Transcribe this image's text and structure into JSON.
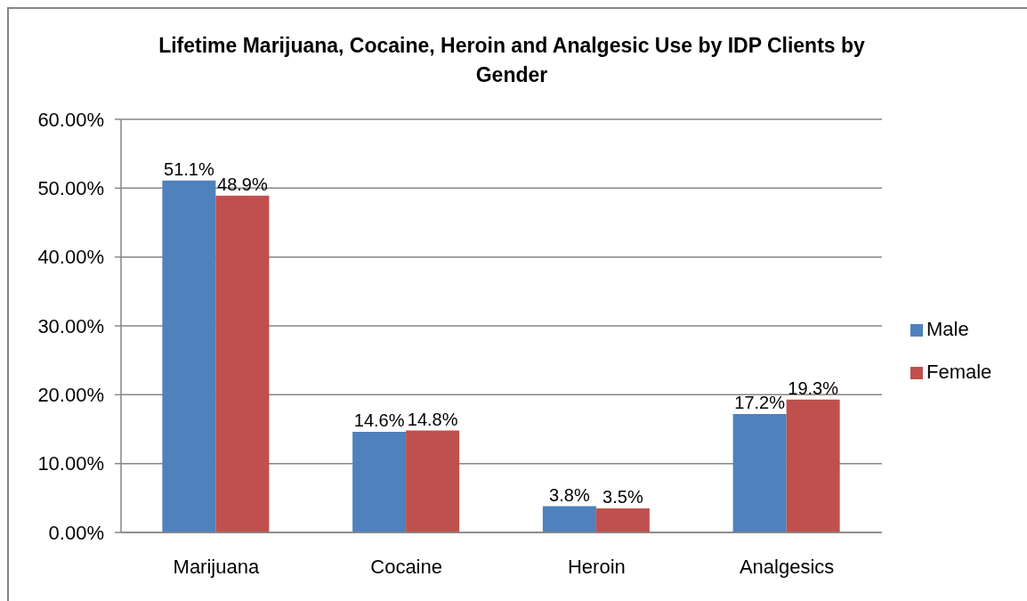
{
  "chart_data": {
    "type": "bar",
    "title": "Lifetime Marijuana, Cocaine, Heroin and Analgesic Use by IDP Clients by Gender",
    "categories": [
      "Marijuana",
      "Cocaine",
      "Heroin",
      "Analgesics"
    ],
    "series": [
      {
        "name": "Male",
        "color": "#4f81bd",
        "values": [
          51.1,
          14.6,
          3.8,
          17.2
        ],
        "value_labels": [
          "51.1%",
          "14.6%",
          "3.8%",
          "17.2%"
        ]
      },
      {
        "name": "Female",
        "color": "#c0504d",
        "values": [
          48.9,
          14.8,
          3.5,
          19.3
        ],
        "value_labels": [
          "48.9%",
          "14.8%",
          "3.5%",
          "19.3%"
        ]
      }
    ],
    "ylim": [
      0,
      60
    ],
    "yticks": [
      {
        "value": 0,
        "label": "0.00%"
      },
      {
        "value": 10,
        "label": "10.00%"
      },
      {
        "value": 20,
        "label": "20.00%"
      },
      {
        "value": 30,
        "label": "30.00%"
      },
      {
        "value": 40,
        "label": "40.00%"
      },
      {
        "value": 50,
        "label": "50.00%"
      },
      {
        "value": 60,
        "label": "60.00%"
      }
    ],
    "grid": "y",
    "legend": "right"
  }
}
